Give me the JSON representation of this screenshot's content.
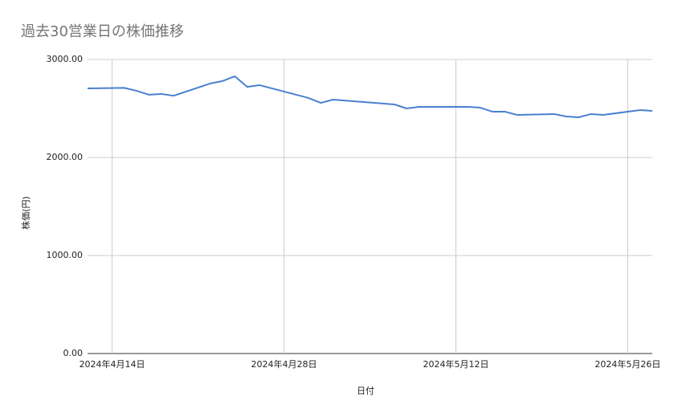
{
  "chart_data": {
    "type": "line",
    "title": "過去30営業日の株価推移",
    "x_label": "日付",
    "y_label": "株価(円)",
    "x": [
      "2024-04-12",
      "2024-04-15",
      "2024-04-16",
      "2024-04-17",
      "2024-04-18",
      "2024-04-19",
      "2024-04-22",
      "2024-04-23",
      "2024-04-24",
      "2024-04-25",
      "2024-04-26",
      "2024-04-30",
      "2024-05-01",
      "2024-05-02",
      "2024-05-07",
      "2024-05-08",
      "2024-05-09",
      "2024-05-10",
      "2024-05-13",
      "2024-05-14",
      "2024-05-15",
      "2024-05-16",
      "2024-05-17",
      "2024-05-20",
      "2024-05-21",
      "2024-05-22",
      "2024-05-23",
      "2024-05-24",
      "2024-05-27",
      "2024-05-28"
    ],
    "series": [
      {
        "name": "株価(円)",
        "color": "#4a80d0",
        "values": [
          2705,
          2710,
          2680,
          2640,
          2648,
          2630,
          2755,
          2780,
          2828,
          2720,
          2738,
          2607,
          2557,
          2590,
          2541,
          2500,
          2516,
          2516,
          2516,
          2508,
          2467,
          2467,
          2434,
          2443,
          2418,
          2410,
          2443,
          2434,
          2484,
          2475
        ]
      }
    ],
    "xlim": [
      "2024-04-12",
      "2024-05-28"
    ],
    "xticks": [
      {
        "value": "2024-04-14",
        "label": "2024年4月14日"
      },
      {
        "value": "2024-04-28",
        "label": "2024年4月28日"
      },
      {
        "value": "2024-05-12",
        "label": "2024年5月12日"
      },
      {
        "value": "2024-05-26",
        "label": "2024年5月26日"
      }
    ],
    "ylim": [
      0,
      3000
    ],
    "yticks": [
      {
        "value": 0,
        "label": "0.00"
      },
      {
        "value": 1000,
        "label": "1000.00"
      },
      {
        "value": 2000,
        "label": "2000.00"
      },
      {
        "value": 3000,
        "label": "3000.00"
      }
    ],
    "grid": true
  }
}
